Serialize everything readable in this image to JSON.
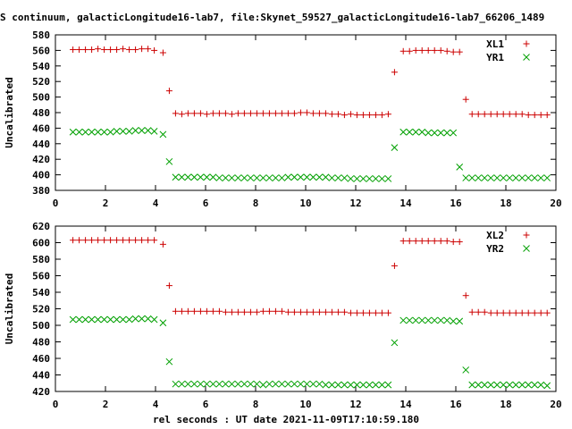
{
  "title": "S continuum, galacticLongitude16-lab7, file:Skynet_59527_galacticLongitude16-lab7_66206_1489",
  "xlabel": "rel seconds : UT date 2021-11-09T17:10:59.180",
  "colors": {
    "red": "#cc0000",
    "green": "#00a000"
  },
  "chart_data": [
    {
      "type": "scatter",
      "ylabel": "Uncalibrated",
      "xlim": [
        0,
        20
      ],
      "ylim": [
        380,
        580
      ],
      "xticks": [
        0,
        2,
        4,
        6,
        8,
        10,
        12,
        14,
        16,
        18,
        20
      ],
      "yticks": [
        380,
        400,
        420,
        440,
        460,
        480,
        500,
        520,
        540,
        560,
        580
      ],
      "legend_position": "top-right",
      "series": [
        {
          "name": "XL1",
          "marker": "plus",
          "color": "#cc0000",
          "x": [
            0.7,
            0.95,
            1.2,
            1.45,
            1.7,
            1.95,
            2.2,
            2.45,
            2.7,
            2.95,
            3.2,
            3.45,
            3.7,
            3.95,
            4.3,
            4.55,
            4.8,
            5.05,
            5.3,
            5.55,
            5.8,
            6.05,
            6.3,
            6.55,
            6.8,
            7.05,
            7.3,
            7.55,
            7.8,
            8.05,
            8.3,
            8.55,
            8.8,
            9.05,
            9.3,
            9.55,
            9.8,
            10.05,
            10.3,
            10.55,
            10.8,
            11.05,
            11.3,
            11.55,
            11.8,
            12.05,
            12.3,
            12.55,
            12.8,
            13.05,
            13.3,
            13.55,
            13.9,
            14.15,
            14.4,
            14.65,
            14.9,
            15.15,
            15.4,
            15.65,
            15.9,
            16.15,
            16.4,
            16.65,
            16.9,
            17.15,
            17.4,
            17.65,
            17.9,
            18.15,
            18.4,
            18.65,
            18.9,
            19.15,
            19.4,
            19.65
          ],
          "y": [
            561,
            561,
            561,
            561,
            562,
            561,
            561,
            561,
            562,
            561,
            561,
            562,
            562,
            560,
            557,
            508,
            479,
            478,
            479,
            479,
            479,
            478,
            479,
            479,
            479,
            478,
            479,
            479,
            479,
            479,
            479,
            479,
            479,
            479,
            479,
            479,
            480,
            480,
            479,
            479,
            479,
            478,
            478,
            477,
            478,
            477,
            477,
            477,
            477,
            477,
            478,
            532,
            559,
            559,
            560,
            560,
            560,
            560,
            560,
            559,
            558,
            558,
            497,
            478,
            478,
            478,
            478,
            478,
            478,
            478,
            478,
            478,
            477,
            477,
            477,
            477
          ]
        },
        {
          "name": "YR1",
          "marker": "cross",
          "color": "#00a000",
          "x": [
            0.7,
            0.95,
            1.2,
            1.45,
            1.7,
            1.95,
            2.2,
            2.45,
            2.7,
            2.95,
            3.2,
            3.45,
            3.7,
            3.95,
            4.3,
            4.55,
            4.8,
            5.05,
            5.3,
            5.55,
            5.8,
            6.05,
            6.3,
            6.55,
            6.8,
            7.05,
            7.3,
            7.55,
            7.8,
            8.05,
            8.3,
            8.55,
            8.8,
            9.05,
            9.3,
            9.55,
            9.8,
            10.05,
            10.3,
            10.55,
            10.8,
            11.05,
            11.3,
            11.55,
            11.8,
            12.05,
            12.3,
            12.55,
            12.8,
            13.05,
            13.3,
            13.55,
            13.9,
            14.15,
            14.4,
            14.65,
            14.9,
            15.15,
            15.4,
            15.65,
            15.9,
            16.15,
            16.4,
            16.65,
            16.9,
            17.15,
            17.4,
            17.65,
            17.9,
            18.15,
            18.4,
            18.65,
            18.9,
            19.15,
            19.4,
            19.65
          ],
          "y": [
            455,
            455,
            455,
            455,
            455,
            455,
            455,
            456,
            456,
            456,
            457,
            457,
            457,
            456,
            452,
            417,
            397,
            397,
            397,
            397,
            397,
            397,
            397,
            396,
            396,
            396,
            396,
            396,
            396,
            396,
            396,
            396,
            396,
            396,
            397,
            397,
            397,
            397,
            397,
            397,
            397,
            396,
            396,
            396,
            395,
            395,
            395,
            395,
            395,
            395,
            395,
            435,
            455,
            455,
            455,
            455,
            454,
            454,
            454,
            454,
            454,
            410,
            396,
            396,
            396,
            396,
            396,
            396,
            396,
            396,
            396,
            396,
            396,
            396,
            396,
            396
          ]
        }
      ]
    },
    {
      "type": "scatter",
      "ylabel": "Uncalibrated",
      "xlim": [
        0,
        20
      ],
      "ylim": [
        420,
        620
      ],
      "xticks": [
        0,
        2,
        4,
        6,
        8,
        10,
        12,
        14,
        16,
        18,
        20
      ],
      "yticks": [
        420,
        440,
        460,
        480,
        500,
        520,
        540,
        560,
        580,
        600,
        620
      ],
      "legend_position": "top-right",
      "series": [
        {
          "name": "XL2",
          "marker": "plus",
          "color": "#cc0000",
          "x": [
            0.7,
            0.95,
            1.2,
            1.45,
            1.7,
            1.95,
            2.2,
            2.45,
            2.7,
            2.95,
            3.2,
            3.45,
            3.7,
            3.95,
            4.3,
            4.55,
            4.8,
            5.05,
            5.3,
            5.55,
            5.8,
            6.05,
            6.3,
            6.55,
            6.8,
            7.05,
            7.3,
            7.55,
            7.8,
            8.05,
            8.3,
            8.55,
            8.8,
            9.05,
            9.3,
            9.55,
            9.8,
            10.05,
            10.3,
            10.55,
            10.8,
            11.05,
            11.3,
            11.55,
            11.8,
            12.05,
            12.3,
            12.55,
            12.8,
            13.05,
            13.3,
            13.55,
            13.9,
            14.15,
            14.4,
            14.65,
            14.9,
            15.15,
            15.4,
            15.65,
            15.9,
            16.15,
            16.4,
            16.65,
            16.9,
            17.15,
            17.4,
            17.65,
            17.9,
            18.15,
            18.4,
            18.65,
            18.9,
            19.15,
            19.4,
            19.65
          ],
          "y": [
            603,
            603,
            603,
            603,
            603,
            603,
            603,
            603,
            603,
            603,
            603,
            603,
            603,
            603,
            598,
            548,
            517,
            517,
            517,
            517,
            517,
            517,
            517,
            517,
            516,
            516,
            516,
            516,
            516,
            516,
            517,
            517,
            517,
            517,
            516,
            516,
            516,
            516,
            516,
            516,
            516,
            516,
            516,
            516,
            515,
            515,
            515,
            515,
            515,
            515,
            515,
            572,
            602,
            602,
            602,
            602,
            602,
            602,
            602,
            602,
            601,
            601,
            536,
            516,
            516,
            516,
            515,
            515,
            515,
            515,
            515,
            515,
            515,
            515,
            515,
            515
          ]
        },
        {
          "name": "YR2",
          "marker": "cross",
          "color": "#00a000",
          "x": [
            0.7,
            0.95,
            1.2,
            1.45,
            1.7,
            1.95,
            2.2,
            2.45,
            2.7,
            2.95,
            3.2,
            3.45,
            3.7,
            3.95,
            4.3,
            4.55,
            4.8,
            5.05,
            5.3,
            5.55,
            5.8,
            6.05,
            6.3,
            6.55,
            6.8,
            7.05,
            7.3,
            7.55,
            7.8,
            8.05,
            8.3,
            8.55,
            8.8,
            9.05,
            9.3,
            9.55,
            9.8,
            10.05,
            10.3,
            10.55,
            10.8,
            11.05,
            11.3,
            11.55,
            11.8,
            12.05,
            12.3,
            12.55,
            12.8,
            13.05,
            13.3,
            13.55,
            13.9,
            14.15,
            14.4,
            14.65,
            14.9,
            15.15,
            15.4,
            15.65,
            15.9,
            16.15,
            16.4,
            16.65,
            16.9,
            17.15,
            17.4,
            17.65,
            17.9,
            18.15,
            18.4,
            18.65,
            18.9,
            19.15,
            19.4,
            19.65
          ],
          "y": [
            507,
            507,
            507,
            507,
            507,
            507,
            507,
            507,
            507,
            507,
            508,
            508,
            508,
            507,
            503,
            456,
            429,
            429,
            429,
            429,
            429,
            429,
            429,
            429,
            429,
            429,
            429,
            429,
            429,
            429,
            428,
            429,
            429,
            429,
            429,
            429,
            429,
            429,
            429,
            429,
            428,
            428,
            428,
            428,
            428,
            428,
            428,
            428,
            428,
            428,
            428,
            479,
            506,
            506,
            506,
            506,
            506,
            506,
            506,
            506,
            505,
            505,
            446,
            428,
            428,
            428,
            428,
            428,
            428,
            428,
            428,
            428,
            428,
            428,
            428,
            427
          ]
        }
      ]
    }
  ]
}
